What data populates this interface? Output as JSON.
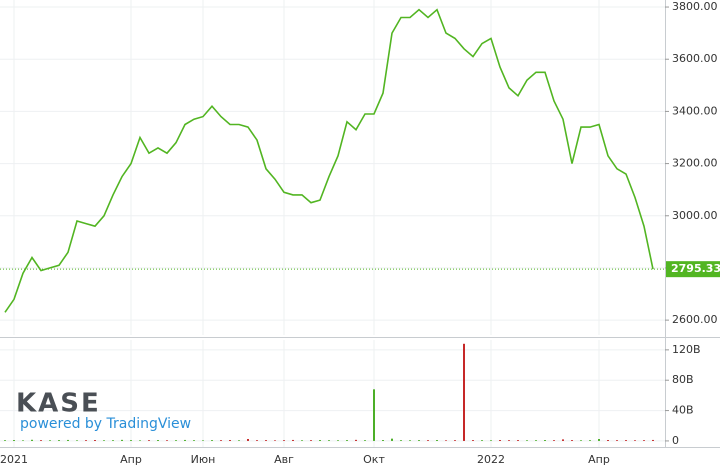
{
  "chart_data": [
    {
      "type": "line",
      "color": "#52b522",
      "values": [
        2630,
        2680,
        2780,
        2840,
        2790,
        2800,
        2810,
        2860,
        2980,
        2970,
        2960,
        3000,
        3080,
        3150,
        3200,
        3300,
        3240,
        3260,
        3240,
        3280,
        3350,
        3370,
        3380,
        3420,
        3380,
        3350,
        3350,
        3340,
        3290,
        3180,
        3140,
        3090,
        3080,
        3080,
        3050,
        3060,
        3150,
        3230,
        3360,
        3330,
        3390,
        3390,
        3470,
        3700,
        3760,
        3760,
        3790,
        3760,
        3790,
        3700,
        3680,
        3640,
        3610,
        3660,
        3680,
        3570,
        3490,
        3460,
        3520,
        3550,
        3550,
        3440,
        3370,
        3200,
        3340,
        3340,
        3350,
        3230,
        3180,
        3160,
        3070,
        2960,
        2795.33
      ],
      "value_labels": [
        null,
        null,
        null,
        null,
        null,
        null,
        null,
        null,
        null,
        null,
        null,
        null,
        null,
        null,
        null,
        null,
        null,
        null,
        null,
        null,
        null,
        null,
        null,
        null,
        null,
        null,
        null,
        null,
        null,
        null,
        null,
        null,
        null,
        null,
        null,
        null,
        null,
        null,
        null,
        null,
        null,
        null,
        null,
        null,
        null,
        null,
        null,
        null,
        null,
        null,
        null,
        null,
        null,
        null,
        null,
        null,
        null,
        null,
        null,
        null,
        null,
        null,
        null,
        null,
        null,
        null,
        null,
        null,
        null,
        null,
        null,
        null,
        "2795.33"
      ],
      "ylim": [
        2543,
        3827
      ],
      "yticks": [
        {
          "value": 2600,
          "label": "2600.00"
        },
        {
          "value": 2800,
          "label": "2800.00"
        },
        {
          "value": 3000,
          "label": "3000.00"
        },
        {
          "value": 3200,
          "label": "3200.00"
        },
        {
          "value": 3400,
          "label": "3400.00"
        },
        {
          "value": 3600,
          "label": "3600.00"
        },
        {
          "value": 3800,
          "label": "3800.00"
        }
      ],
      "grid": true
    },
    {
      "type": "bar",
      "up_color": "#4caf28",
      "down_color": "#c62828",
      "categories": [
        null,
        "2021",
        null,
        null,
        null,
        null,
        null,
        null,
        null,
        null,
        null,
        null,
        null,
        null,
        "Апр",
        null,
        null,
        null,
        null,
        null,
        null,
        null,
        "Июн",
        null,
        null,
        null,
        null,
        null,
        null,
        null,
        null,
        "Авг",
        null,
        null,
        null,
        null,
        null,
        null,
        null,
        null,
        null,
        "Окт",
        null,
        null,
        null,
        null,
        null,
        null,
        null,
        null,
        null,
        null,
        null,
        null,
        "2022",
        null,
        null,
        null,
        null,
        null,
        null,
        null,
        null,
        null,
        null,
        null,
        "Апр",
        null,
        null,
        null,
        null,
        null,
        null
      ],
      "values": [
        1,
        1.2,
        0.8,
        1.5,
        1,
        0.9,
        1.1,
        1.3,
        0.8,
        1,
        1.2,
        0.9,
        1,
        1.4,
        1.1,
        0.8,
        1,
        1.2,
        0.9,
        1,
        1.3,
        1,
        0.8,
        1.1,
        1,
        1.2,
        0.9,
        2.5,
        1,
        1.1,
        0.8,
        1,
        1.3,
        0.9,
        1,
        1.2,
        1,
        0.9,
        1.1,
        1.4,
        1,
        68,
        1.2,
        3,
        1,
        0.9,
        1.1,
        1,
        1.2,
        0.8,
        1,
        128,
        1.1,
        1,
        0.9,
        1.2,
        1,
        1.1,
        0.9,
        1,
        1.2,
        1,
        2,
        1.1,
        0.9,
        1,
        2.5,
        1.2,
        1,
        1.1,
        0.9,
        1,
        1.3
      ],
      "ylim": [
        -8,
        133
      ],
      "yticks": [
        0,
        {
          "value": 40,
          "label": "40B"
        },
        {
          "value": 80,
          "label": "80B"
        },
        {
          "value": 120,
          "label": "120B"
        }
      ],
      "grid": true
    }
  ],
  "brand": {
    "name": "KASE",
    "tagline": "powered by TradingView"
  }
}
